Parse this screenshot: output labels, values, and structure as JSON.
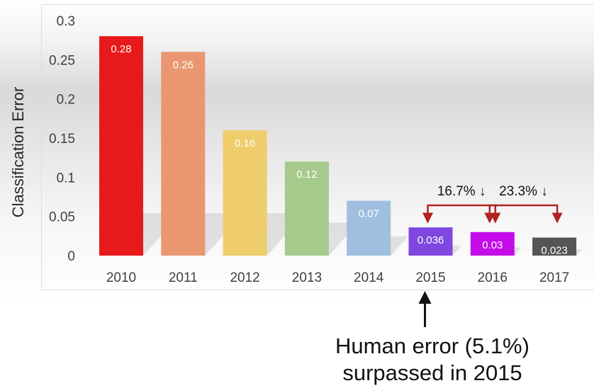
{
  "chart_data": {
    "type": "bar",
    "categories": [
      "2010",
      "2011",
      "2012",
      "2013",
      "2014",
      "2015",
      "2016",
      "2017"
    ],
    "values": [
      0.28,
      0.26,
      0.16,
      0.12,
      0.07,
      0.036,
      0.03,
      0.023
    ],
    "data_labels": [
      "0.28",
      "0.26",
      "0.16",
      "0.12",
      "0.07",
      "0.036",
      "0.03",
      "0.023"
    ],
    "bar_colors": [
      "#e8191a",
      "#ea9670",
      "#eecd6a",
      "#a6c98c",
      "#a0bedf",
      "#7f47e0",
      "#c40ce8",
      "#555555"
    ],
    "ylabel": "Classification Error",
    "xlabel": "",
    "title": "",
    "ylim": [
      0,
      0.3
    ],
    "yticks": [
      {
        "value": 0,
        "label": "0"
      },
      {
        "value": 0.05,
        "label": "0.05"
      },
      {
        "value": 0.1,
        "label": "0.1"
      },
      {
        "value": 0.15,
        "label": "0.15"
      },
      {
        "value": 0.2,
        "label": "0.2"
      },
      {
        "value": 0.25,
        "label": "0.25"
      },
      {
        "value": 0.3,
        "label": "0.3"
      }
    ],
    "grid": false,
    "legend": "none",
    "annotations": [
      {
        "from": "2015",
        "to": "2016",
        "text": "16.7% ↓",
        "color": "#b22222"
      },
      {
        "from": "2016",
        "to": "2017",
        "text": "23.3% ↓",
        "color": "#b22222"
      }
    ],
    "pointer": {
      "category": "2015",
      "text_lines": [
        "Human error (5.1%)",
        "surpassed in 2015"
      ]
    }
  }
}
